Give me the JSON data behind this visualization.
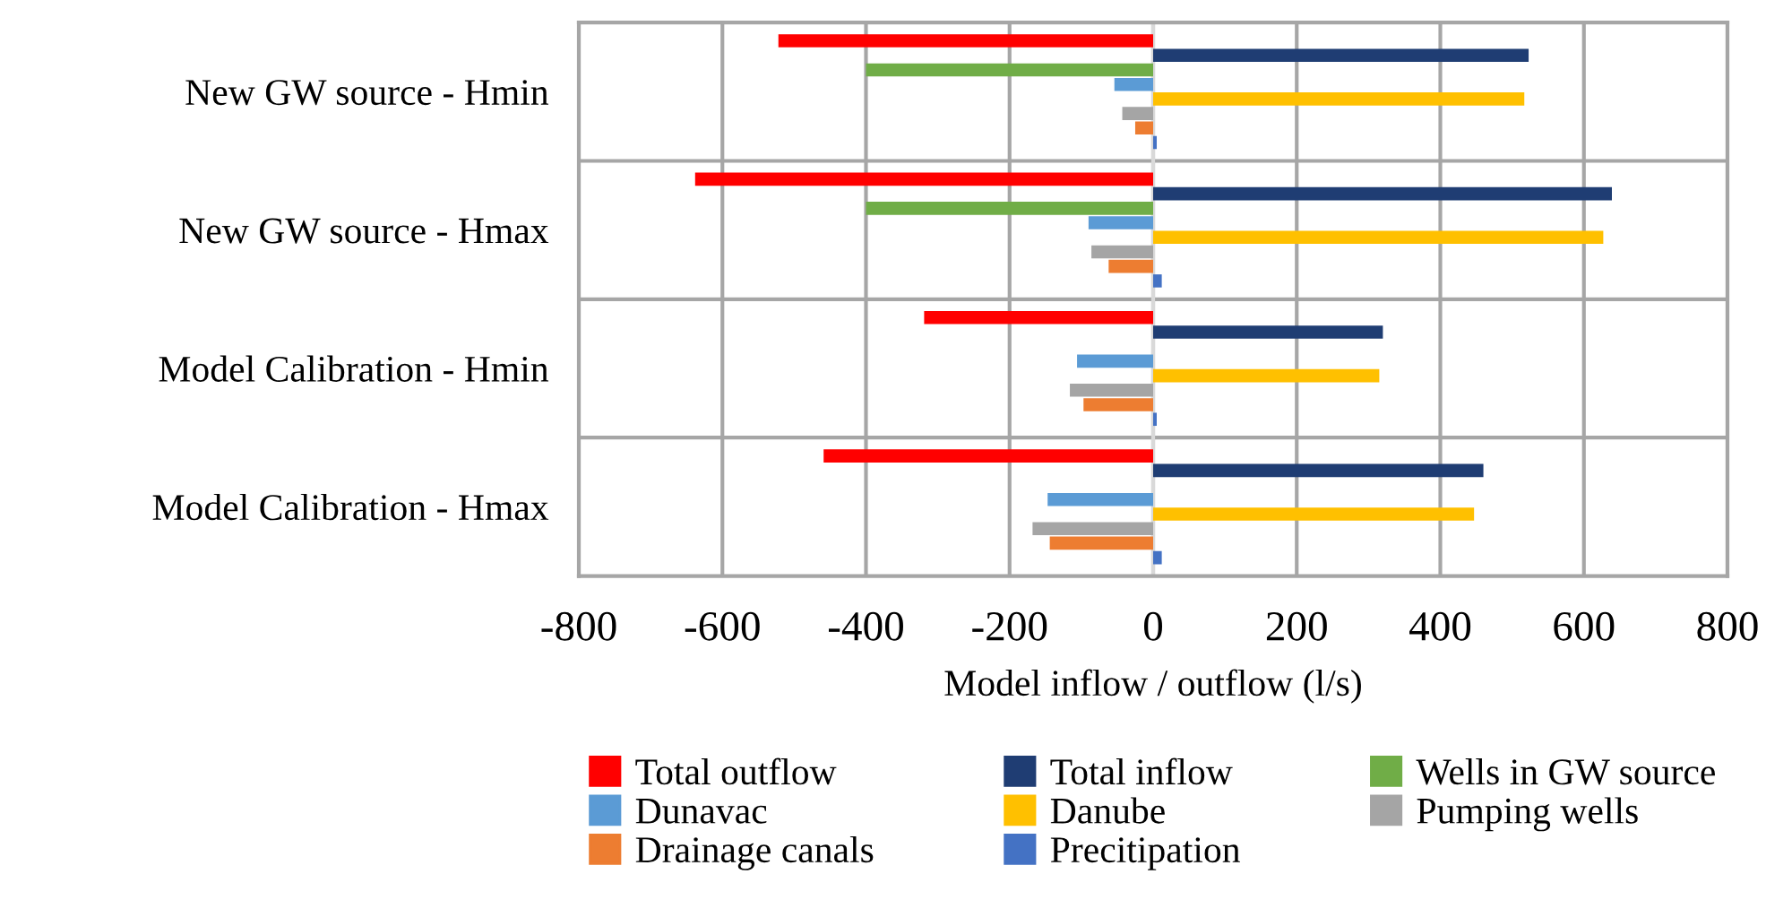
{
  "chart_data": {
    "type": "bar",
    "orientation": "horizontal",
    "xlabel": "Model inflow / outflow (l/s)",
    "categories": [
      "New GW source - Hmin",
      "New GW source - Hmax",
      "Model Calibration - Hmin",
      "Model Calibration - Hmax"
    ],
    "series": [
      {
        "name": "Total outflow",
        "color": "#ff0000",
        "values": [
          -522,
          -638,
          -319,
          -459
        ]
      },
      {
        "name": "Total inflow",
        "color": "#1f3d73",
        "values": [
          523,
          639,
          320,
          460
        ]
      },
      {
        "name": "Wells in GW source",
        "color": "#70ad47",
        "values": [
          -400,
          -400,
          0,
          0
        ]
      },
      {
        "name": "Dunavac",
        "color": "#5b9bd5",
        "values": [
          -54,
          -90,
          -106,
          -147
        ]
      },
      {
        "name": "Danube",
        "color": "#ffc000",
        "values": [
          517,
          627,
          315,
          447
        ]
      },
      {
        "name": "Pumping wells",
        "color": "#a5a5a5",
        "values": [
          -43,
          -86,
          -116,
          -168
        ]
      },
      {
        "name": "Drainage canals",
        "color": "#ed7d31",
        "values": [
          -25,
          -62,
          -97,
          -144
        ]
      },
      {
        "name": "Precitipation",
        "color": "#4472c4",
        "values": [
          5,
          12,
          5,
          12
        ]
      }
    ],
    "xlim": [
      -800,
      800
    ],
    "xticks": [
      -800,
      -600,
      -400,
      -200,
      0,
      200,
      400,
      600,
      800
    ],
    "grid": true,
    "legend": "bottom"
  }
}
